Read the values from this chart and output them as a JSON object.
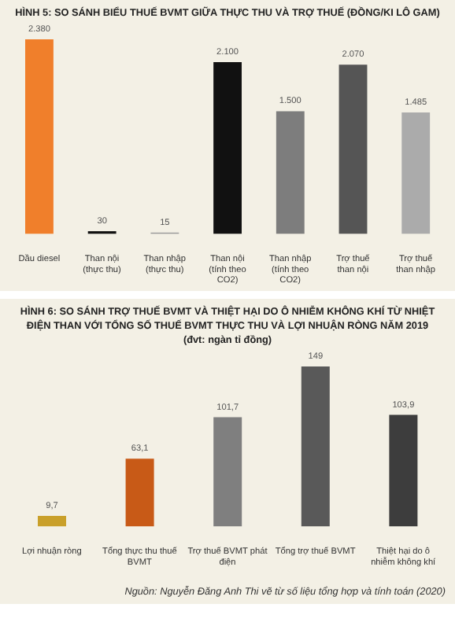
{
  "chart_data": [
    {
      "type": "bar",
      "title": "HÌNH 5: SO SÁNH BIỂU THUẾ BVMT GIỮA THỰC THU VÀ TRỢ THUẾ (ĐỒNG/KI LÔ GAM)",
      "categories": [
        "Dầu diesel",
        "Than nội (thực thu)",
        "Than nhập (thực thu)",
        "Than nội (tính theo CO2)",
        "Than nhập (tính theo CO2)",
        "Trợ thuế than nội",
        "Trợ thuế than nhập"
      ],
      "values": [
        2380,
        30,
        15,
        2100,
        1500,
        2070,
        1485
      ],
      "value_labels": [
        "2.380",
        "30",
        "15",
        "2.100",
        "1.500",
        "2.070",
        "1.485"
      ],
      "colors": [
        "#f07f2b",
        "#111111",
        "#9a9a9a",
        "#111111",
        "#7d7d7d",
        "#555555",
        "#ababab"
      ]
    },
    {
      "type": "bar",
      "title": "HÌNH 6: SO SÁNH TRỢ THUẾ BVMT VÀ THIỆT HẠI DO Ô NHIỄM KHÔNG KHÍ TỪ NHIỆT ĐIỆN THAN VỚI TỔNG SỐ THUẾ BVMT THỰC THU VÀ LỢI NHUẬN RÒNG NĂM 2019",
      "subtitle": "(đvt: ngàn tỉ đồng)",
      "categories": [
        "Lợi nhuận ròng",
        "Tổng thực thu thuế BVMT",
        "Trợ thuế BVMT phát điện",
        "Tổng trợ thuế BVMT",
        "Thiệt hại do ô nhiễm không khí"
      ],
      "values": [
        9.7,
        63.1,
        101.7,
        149,
        103.9
      ],
      "value_labels": [
        "9,7",
        "63,1",
        "101,7",
        "149",
        "103,9"
      ],
      "colors": [
        "#c9a02a",
        "#c85a17",
        "#7f7f7f",
        "#595959",
        "#3d3d3d"
      ],
      "annotations": [
        "Nguồn: Nguyễn Đăng Anh Thi vẽ từ số liệu tổng hợp và tính toán (2020)"
      ]
    }
  ]
}
